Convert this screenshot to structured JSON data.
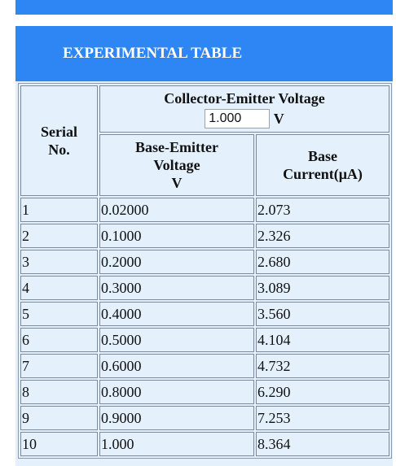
{
  "header": {
    "title": "EXPERIMENTAL TABLE"
  },
  "columns": {
    "serial": "Serial No.",
    "collector_emitter": "Collector-Emitter Voltage",
    "collector_unit": "V",
    "base_emitter": "Base-Emitter Voltage",
    "base_emitter_unit": "V",
    "base_current": "Base Current(μA)"
  },
  "collector_voltage_input": {
    "value": "1.000"
  },
  "rows": [
    {
      "serial": "1",
      "vbe": "0.02000",
      "ib": "2.073"
    },
    {
      "serial": "2",
      "vbe": "0.1000",
      "ib": "2.326"
    },
    {
      "serial": "3",
      "vbe": "0.2000",
      "ib": "2.680"
    },
    {
      "serial": "4",
      "vbe": "0.3000",
      "ib": "3.089"
    },
    {
      "serial": "5",
      "vbe": "0.4000",
      "ib": "3.560"
    },
    {
      "serial": "6",
      "vbe": "0.5000",
      "ib": "4.104"
    },
    {
      "serial": "7",
      "vbe": "0.6000",
      "ib": "4.732"
    },
    {
      "serial": "8",
      "vbe": "0.8000",
      "ib": "6.290"
    },
    {
      "serial": "9",
      "vbe": "0.9000",
      "ib": "7.253"
    },
    {
      "serial": "10",
      "vbe": "1.000",
      "ib": "8.364"
    }
  ],
  "colors": {
    "accent": "#2e86f5",
    "panel_bg": "#e4f1fd"
  }
}
